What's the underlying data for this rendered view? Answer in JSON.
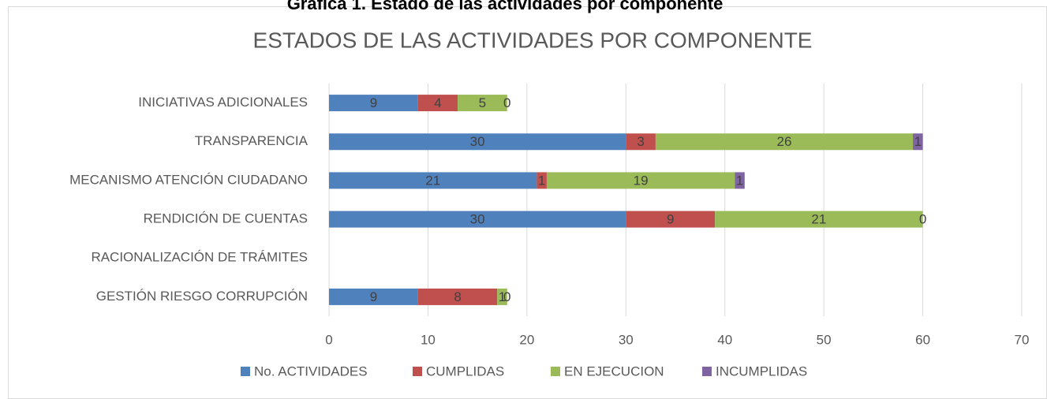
{
  "caption": "Gráfica 1. Estado de las actividades por componente",
  "chart_data": {
    "type": "stacked_barh",
    "title": "ESTADOS DE LAS ACTIVIDADES POR COMPONENTE",
    "categories": [
      "INICIATIVAS ADICIONALES",
      "TRANSPARENCIA",
      "MECANISMO ATENCIÓN CIUDADANO",
      "RENDICIÓN DE CUENTAS",
      "RACIONALIZACIÓN DE TRÁMITES",
      "GESTIÓN RIESGO CORRUPCIÓN"
    ],
    "series": [
      {
        "name": "No. ACTIVIDADES",
        "color": "#4f81bd",
        "values": [
          9,
          30,
          21,
          30,
          null,
          9
        ]
      },
      {
        "name": "CUMPLIDAS",
        "color": "#c0504d",
        "values": [
          4,
          3,
          1,
          9,
          null,
          8
        ]
      },
      {
        "name": "EN EJECUCION",
        "color": "#9bbb59",
        "values": [
          5,
          26,
          19,
          21,
          null,
          1
        ]
      },
      {
        "name": "INCUMPLIDAS",
        "color": "#8064a2",
        "values": [
          0,
          1,
          1,
          0,
          null,
          0
        ]
      }
    ],
    "xlim": [
      0,
      70
    ],
    "xticks": [
      0,
      10,
      20,
      30,
      40,
      50,
      60,
      70
    ],
    "grid": true,
    "legend": "bottom"
  }
}
